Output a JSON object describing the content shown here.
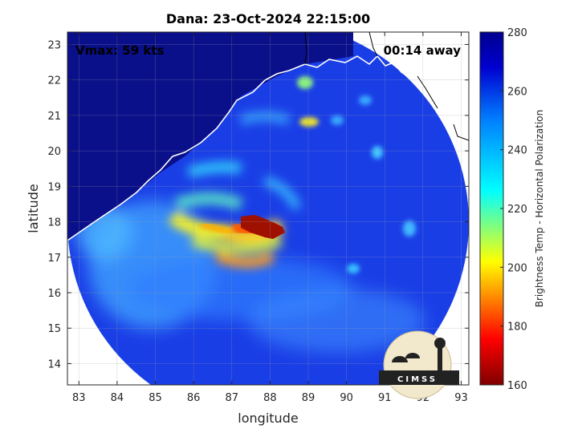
{
  "chart_data": {
    "type": "heatmap",
    "title": "Dana: 23-Oct-2024 22:15:00",
    "xlabel": "longitude",
    "ylabel": "latitude",
    "xlim": [
      82.7,
      93.2
    ],
    "ylim": [
      13.4,
      23.35
    ],
    "xticks": [
      83,
      84,
      85,
      86,
      87,
      88,
      89,
      90,
      91,
      92,
      93
    ],
    "yticks": [
      14,
      15,
      16,
      17,
      18,
      19,
      20,
      21,
      22,
      23
    ],
    "grid": true,
    "annotations": [
      {
        "text": "Vmax: 59 kts",
        "position": "top-left"
      },
      {
        "text": "00:14 away",
        "position": "top-right"
      }
    ],
    "colorbar": {
      "label": "Brightness Temp - Horizontal Polarization",
      "min": 160,
      "max": 280,
      "ticks": [
        160,
        180,
        200,
        220,
        240,
        260,
        280
      ],
      "colormap": [
        "#7f0000",
        "#ff0000",
        "#ffff00",
        "#00ffff",
        "#0080ff",
        "#00008f"
      ]
    },
    "swath": {
      "center_lon": 88.0,
      "center_lat": 18.0,
      "radius_deg": 5.0
    },
    "storm_center": {
      "lon": 88.1,
      "lat": 17.8
    },
    "coldest_region_value": 165
  },
  "logo": {
    "text": "CIMSS"
  }
}
